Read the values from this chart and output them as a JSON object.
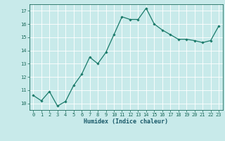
{
  "x": [
    0,
    1,
    2,
    3,
    4,
    5,
    6,
    7,
    8,
    9,
    10,
    11,
    12,
    13,
    14,
    15,
    16,
    17,
    18,
    19,
    20,
    21,
    22,
    23
  ],
  "y": [
    10.6,
    10.2,
    10.9,
    9.8,
    10.15,
    11.35,
    12.2,
    13.5,
    13.0,
    13.85,
    15.2,
    16.55,
    16.35,
    16.35,
    17.2,
    16.0,
    15.55,
    15.2,
    14.85,
    14.85,
    14.75,
    14.6,
    14.75,
    15.85
  ],
  "xlabel": "Humidex (Indice chaleur)",
  "ylabel": "",
  "xlim": [
    -0.5,
    23.5
  ],
  "ylim": [
    9.5,
    17.5
  ],
  "yticks": [
    10,
    11,
    12,
    13,
    14,
    15,
    16,
    17
  ],
  "xticks": [
    0,
    1,
    2,
    3,
    4,
    5,
    6,
    7,
    8,
    9,
    10,
    11,
    12,
    13,
    14,
    15,
    16,
    17,
    18,
    19,
    20,
    21,
    22,
    23
  ],
  "line_color": "#1a7a6a",
  "marker": "D",
  "marker_size": 1.8,
  "line_width": 0.9,
  "bg_color": "#c8eaea",
  "grid_color": "#ffffff",
  "tick_color": "#1a6a5a",
  "label_color": "#1a5a6a",
  "tick_fontsize": 5.0,
  "xlabel_fontsize": 6.0
}
